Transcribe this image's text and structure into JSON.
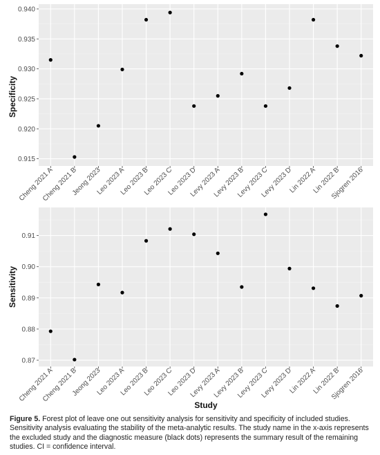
{
  "chart_data": [
    {
      "type": "scatter",
      "ylabel": "Specificity",
      "xlabel": "",
      "categories": [
        "Cheng 2021 A",
        "Cheng 2021 B",
        "Jeong 2023",
        "Leo 2023 A",
        "Leo 2023 B",
        "Leo 2023 C",
        "Leo 2023 D",
        "Levy 2023 A",
        "Levy 2023 B",
        "Levy 2023 C",
        "Levy 2023 D",
        "Lin 2022 A",
        "Lin 2022 B",
        "Sjogren 2016"
      ],
      "values": [
        0.9315,
        0.9153,
        0.9205,
        0.9299,
        0.9382,
        0.9394,
        0.9238,
        0.9255,
        0.9292,
        0.9238,
        0.9268,
        0.9382,
        0.9338,
        0.9322
      ],
      "yticks": [
        "0.915",
        "0.920",
        "0.925",
        "0.930",
        "0.935",
        "0.940"
      ],
      "ylim": [
        0.9138,
        0.9408
      ],
      "grid": true,
      "point_color": "#000000"
    },
    {
      "type": "scatter",
      "ylabel": "Sensitivity",
      "xlabel": "Study",
      "categories": [
        "Cheng 2021 A",
        "Cheng 2021 B",
        "Jeong 2023",
        "Leo 2023 A",
        "Leo 2023 B",
        "Leo 2023 C",
        "Leo 2023 D",
        "Levy 2023 A",
        "Levy 2023 B",
        "Levy 2023 C",
        "Levy 2023 D",
        "Lin 2022 A",
        "Lin 2022 B",
        "Sjogren 2016"
      ],
      "values": [
        0.8793,
        0.8702,
        0.8943,
        0.8917,
        0.9083,
        0.9121,
        0.9104,
        0.9043,
        0.8935,
        0.9168,
        0.8994,
        0.8931,
        0.8874,
        0.8907
      ],
      "yticks": [
        "0.87",
        "0.88",
        "0.89",
        "0.90",
        "0.91"
      ],
      "ylim": [
        0.868,
        0.919
      ],
      "grid": true,
      "point_color": "#000000"
    }
  ],
  "caption": {
    "label": "Figure 5.",
    "text": "Forest plot of leave one out sensitivity analysis for sensitivity and specificity of included studies. Sensitivity analysis evaluating the stability of the meta-analytic results. The study name in the x-axis represents the excluded study and the diagnostic measure (black dots) represents the summary result of the remaining studies. CI = confidence interval."
  }
}
